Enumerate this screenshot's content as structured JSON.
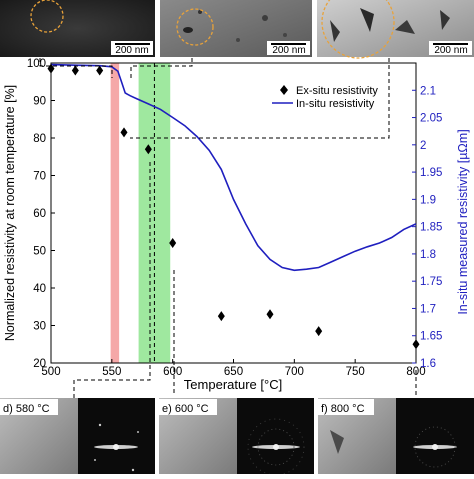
{
  "chart_data": {
    "type": "scatter+line",
    "xlabel": "Temperature [°C]",
    "ylabel_left": "Normalized resistivity at room temperature [%]",
    "ylabel_right": "In-situ measured resistivity [µΩm]",
    "xlim": [
      500,
      800
    ],
    "ylim_left": [
      20,
      100
    ],
    "ylim_right": [
      1.6,
      2.15
    ],
    "x_ticks": [
      500,
      550,
      600,
      650,
      700,
      750,
      800
    ],
    "y_left_ticks": [
      20,
      30,
      40,
      50,
      60,
      70,
      80,
      90,
      100
    ],
    "y_right_ticks": [
      1.6,
      1.65,
      1.7,
      1.75,
      1.8,
      1.85,
      1.9,
      1.95,
      2,
      2.05,
      2.1
    ],
    "x_tick_labels": [
      "500",
      "550",
      "600",
      "650",
      "700",
      "750",
      "800"
    ],
    "y_left_tick_labels": [
      "20",
      "30",
      "40",
      "50",
      "60",
      "70",
      "80",
      "90",
      "100"
    ],
    "y_right_tick_labels": [
      "1.6",
      "1.65",
      "1.7",
      "1.75",
      "1.8",
      "1.85",
      "1.9",
      "1.95",
      "2",
      "2.05",
      "2.1"
    ],
    "grid": false,
    "legend_position": "top-right",
    "series": [
      {
        "name": "Ex-situ resistivity",
        "marker": "diamond",
        "color": "#000000",
        "axis": "left",
        "x": [
          500,
          520,
          540,
          560,
          580,
          600,
          640,
          680,
          720,
          800
        ],
        "y": [
          98.5,
          98,
          98,
          81.5,
          77,
          52,
          32.5,
          33,
          28.5,
          25
        ]
      },
      {
        "name": "In-situ resistivity",
        "color": "#1f1fbf",
        "axis": "right",
        "x": [
          500,
          520,
          540,
          550,
          555,
          558,
          561,
          565,
          570,
          580,
          590,
          600,
          610,
          620,
          630,
          640,
          650,
          660,
          670,
          680,
          690,
          700,
          710,
          720,
          730,
          740,
          750,
          760,
          770,
          780,
          790,
          800
        ],
        "y": [
          2.147,
          2.146,
          2.145,
          2.143,
          2.135,
          2.115,
          2.095,
          2.09,
          2.085,
          2.075,
          2.065,
          2.05,
          2.035,
          2.015,
          1.99,
          1.955,
          1.9,
          1.855,
          1.815,
          1.79,
          1.775,
          1.77,
          1.772,
          1.775,
          1.785,
          1.795,
          1.805,
          1.813,
          1.82,
          1.83,
          1.845,
          1.855
        ]
      }
    ],
    "shaded_bands": [
      {
        "x0": 549,
        "x1": 556,
        "color": "#f28b8b"
      },
      {
        "x0": 572,
        "x1": 598,
        "color": "#7fe07f"
      }
    ],
    "reference_line_x": [
      585
    ]
  },
  "insets_top": [
    {
      "scale_label": "200 nm"
    },
    {
      "scale_label": "200 nm"
    },
    {
      "scale_label": "200 nm"
    }
  ],
  "insets_bottom": [
    {
      "label": "d) 580 °C"
    },
    {
      "label": "e) 600 °C"
    },
    {
      "label": "f) 800 °C"
    }
  ],
  "colors": {
    "insitu_line": "#1f1fbf",
    "red_band": "#f28b8b",
    "green_band": "#7fe07f",
    "circle_highlight": "#e8a23a"
  }
}
